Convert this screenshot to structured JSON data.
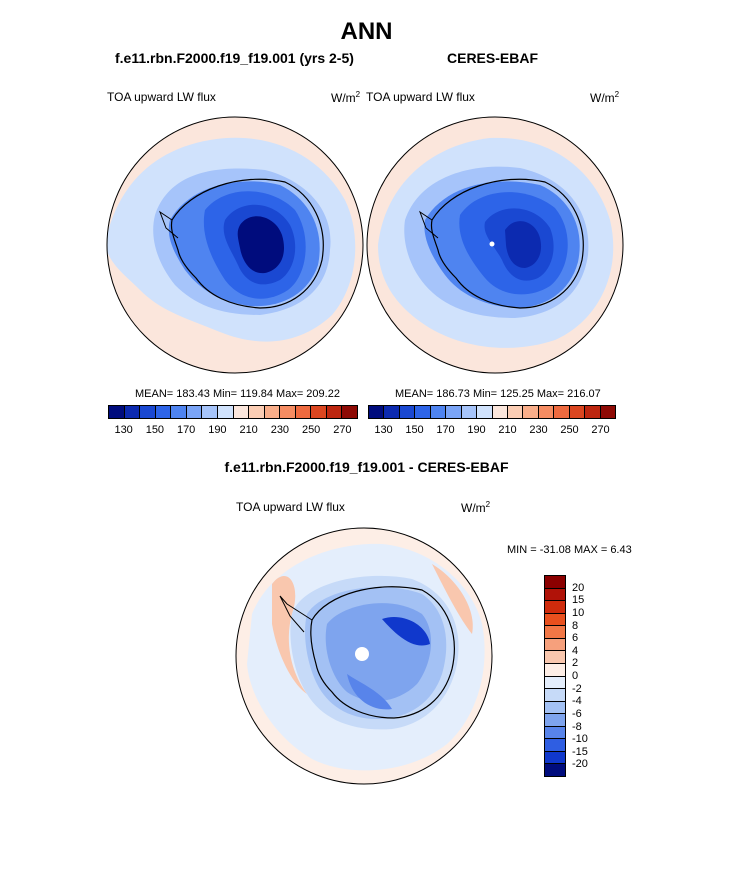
{
  "title": "ANN",
  "panel_left": {
    "case_title": "f.e11.rbn.F2000.f19_f19.001 (yrs 2-5)",
    "variable": "TOA upward LW flux",
    "units": "W/m",
    "units_exp": "2",
    "stats": "MEAN= 183.43  Min= 119.84  Max= 209.22"
  },
  "panel_right": {
    "case_title": "CERES-EBAF",
    "variable": "TOA upward LW flux",
    "units": "W/m",
    "units_exp": "2",
    "stats": "MEAN= 186.73  Min= 125.25  Max= 216.07"
  },
  "panel_diff": {
    "title": "f.e11.rbn.F2000.f19_f19.001 - CERES-EBAF",
    "variable": "TOA upward LW flux",
    "units": "W/m",
    "units_exp": "2",
    "minmax": "MIN = -31.08 MAX =   6.43"
  },
  "colorbar_abs": {
    "colors": [
      "#000c7d",
      "#0c2ab0",
      "#1a48d2",
      "#2d64e8",
      "#4f84f0",
      "#7aa4f6",
      "#a6c4fa",
      "#d0e2fc",
      "#fbe6dc",
      "#fbcdb4",
      "#f9ae8a",
      "#f58c62",
      "#ee6a3f",
      "#db4620",
      "#bd260f",
      "#8e0a05"
    ],
    "labels": [
      "130",
      "150",
      "170",
      "190",
      "210",
      "230",
      "250",
      "270"
    ]
  },
  "colorbar_diff": {
    "colors": [
      "#8b0000",
      "#b01208",
      "#cf2b0c",
      "#e9501e",
      "#f27746",
      "#f6a07c",
      "#f9c7ae",
      "#fdeee6",
      "#e4eefc",
      "#c6daf8",
      "#a3c1f4",
      "#7ea4ee",
      "#5884ea",
      "#2f5ee2",
      "#1038cc",
      "#000c7d"
    ],
    "labels": [
      "20",
      "15",
      "10",
      "8",
      "6",
      "4",
      "2",
      "0",
      "-2",
      "-4",
      "-6",
      "-8",
      "-10",
      "-15",
      "-20"
    ]
  }
}
